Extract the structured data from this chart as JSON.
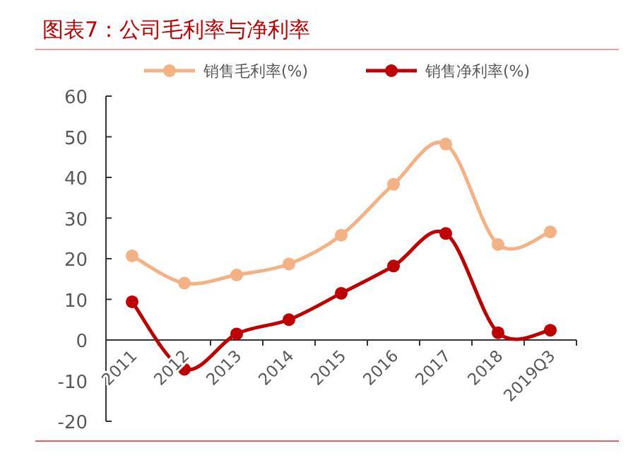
{
  "chart_data": {
    "type": "line",
    "title": "图表7：公司毛利率与净利率",
    "categories": [
      "2011",
      "2012",
      "2013",
      "2014",
      "2015",
      "2016",
      "2017",
      "2018",
      "2019Q3"
    ],
    "series": [
      {
        "name": "销售毛利率(%)",
        "color": "#f4b183",
        "values": [
          20.7,
          14,
          16,
          18.7,
          25.8,
          38.3,
          48.2,
          23.5,
          26.6
        ]
      },
      {
        "name": "销售净利率(%)",
        "color": "#c00000",
        "values": [
          9.4,
          -7.2,
          1.5,
          5,
          11.5,
          18.2,
          26.2,
          1.8,
          2.4
        ]
      }
    ],
    "ylim": [
      -20,
      60
    ],
    "yticks": [
      -20,
      -10,
      0,
      10,
      20,
      30,
      40,
      50,
      60
    ],
    "legend": "top",
    "marker": "circle",
    "line_style": "solid"
  }
}
